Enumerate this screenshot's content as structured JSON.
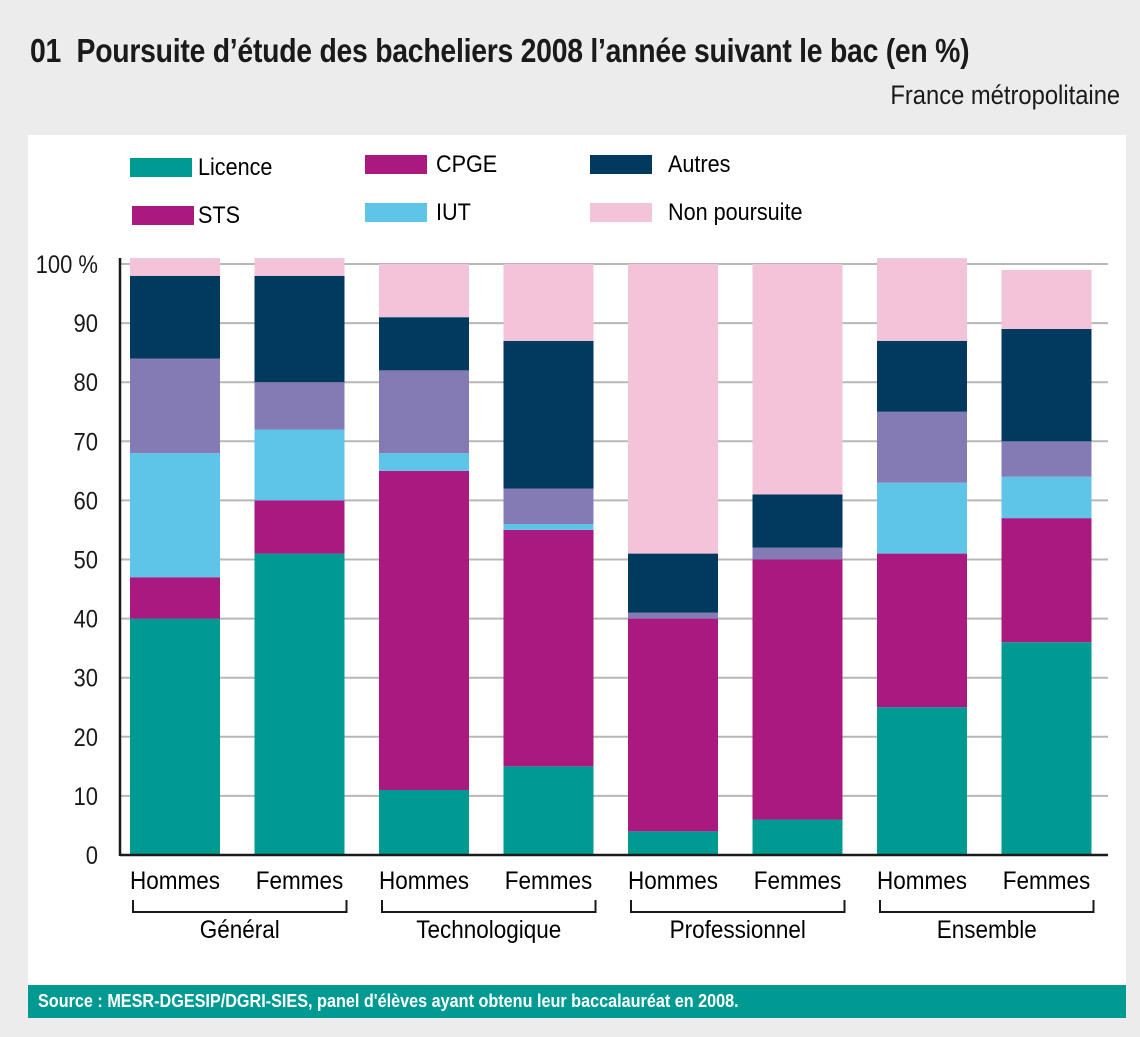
{
  "header": {
    "number": "01",
    "title": "Poursuite d’étude des bacheliers 2008 l’année suivant le bac (en %)",
    "subtitle": "France métropolitaine"
  },
  "footer": {
    "source": "Source : MESR-DGESIP/DGRI-SIES, panel d'élèves ayant obtenu leur baccalauréat en 2008."
  },
  "legend": [
    {
      "label": "Licence",
      "swatch_color": "#009a93"
    },
    {
      "label": "CPGE",
      "swatch_color": "#a9197f"
    },
    {
      "label": "Autres",
      "swatch_color": "#013a5e"
    },
    {
      "label": "STS",
      "swatch_color": "#a9197f"
    },
    {
      "label": "IUT",
      "swatch_color": "#5ec4e8"
    },
    {
      "label": "Non poursuite",
      "swatch_color": "#f3c3d9"
    }
  ],
  "chart_data": {
    "type": "bar",
    "stacked": true,
    "title": "Poursuite d’étude des bacheliers 2008 l’année suivant le bac (en %)",
    "subtitle": "France métropolitaine",
    "xlabel": "",
    "ylabel": "",
    "ylim": [
      0,
      100
    ],
    "yticks": [
      0,
      10,
      20,
      30,
      40,
      50,
      60,
      70,
      80,
      90,
      100
    ],
    "ytick_labels": [
      "0",
      "10",
      "20",
      "30",
      "40",
      "50",
      "60",
      "70",
      "80",
      "90",
      "100 %"
    ],
    "grid": true,
    "legend_position": "top",
    "categories": [
      "Hommes",
      "Femmes",
      "Hommes",
      "Femmes",
      "Hommes",
      "Femmes",
      "Hommes",
      "Femmes"
    ],
    "groups": [
      {
        "label": "Général",
        "members": [
          0,
          1
        ]
      },
      {
        "label": "Technologique",
        "members": [
          2,
          3
        ]
      },
      {
        "label": "Professionnel",
        "members": [
          4,
          5
        ]
      },
      {
        "label": "Ensemble",
        "members": [
          6,
          7
        ]
      }
    ],
    "series": [
      {
        "name": "Licence",
        "color": "#009a93",
        "values": [
          40,
          51,
          11,
          15,
          4,
          6,
          25,
          36
        ]
      },
      {
        "name": "STS",
        "color": "#a9197f",
        "values": [
          7,
          9,
          54,
          40,
          36,
          44,
          26,
          21
        ]
      },
      {
        "name": "IUT",
        "color": "#5ec4e8",
        "values": [
          21,
          12,
          3,
          1,
          0,
          0,
          12,
          7
        ]
      },
      {
        "name": "CPGE",
        "color": "#847bb4",
        "values": [
          16,
          8,
          14,
          6,
          1,
          2,
          12,
          6
        ]
      },
      {
        "name": "Autres",
        "color": "#013a5e",
        "values": [
          14,
          18,
          9,
          25,
          10,
          9,
          12,
          19
        ]
      },
      {
        "name": "Non poursuite",
        "color": "#f3c3d9",
        "values": [
          3,
          3,
          9,
          13,
          49,
          39,
          14,
          10
        ]
      }
    ]
  }
}
